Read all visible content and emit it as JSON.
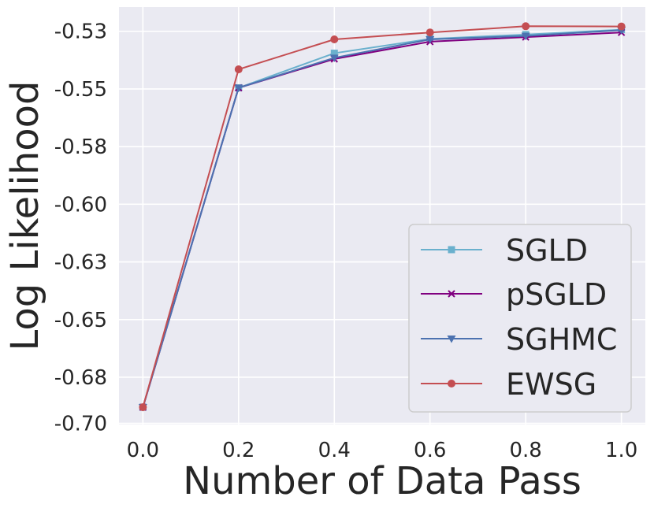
{
  "chart_data": {
    "type": "line",
    "title": "",
    "xlabel": "Number of Data Pass",
    "ylabel": "Log Likelihood",
    "xlim": [
      -0.05,
      1.05
    ],
    "ylim": [
      -0.7005,
      -0.5195
    ],
    "x": [
      0.0,
      0.2,
      0.4,
      0.6,
      0.8,
      1.0
    ],
    "xticks": [
      0.0,
      0.2,
      0.4,
      0.6,
      0.8,
      1.0
    ],
    "xtick_labels": [
      "0.0",
      "0.2",
      "0.4",
      "0.6",
      "0.8",
      "1.0"
    ],
    "yticks": [
      -0.53,
      -0.555,
      -0.58,
      -0.605,
      -0.63,
      -0.655,
      -0.68,
      -0.7
    ],
    "ytick_labels": [
      "-0.53",
      "-0.55",
      "-0.58",
      "-0.60",
      "-0.63",
      "-0.65",
      "-0.68",
      "-0.70"
    ],
    "grid": true,
    "legend_position": "lower-right",
    "series": [
      {
        "name": "SGLD",
        "color": "#6ab0cd",
        "marker": "square",
        "values": [
          -0.693,
          -0.5545,
          -0.5395,
          -0.5333,
          -0.5314,
          -0.5293
        ]
      },
      {
        "name": "pSGLD",
        "color": "#800080",
        "marker": "x",
        "values": [
          -0.693,
          -0.5545,
          -0.542,
          -0.5345,
          -0.5325,
          -0.5305
        ]
      },
      {
        "name": "SGHMC",
        "color": "#4c72b0",
        "marker": "triangle-down",
        "values": [
          -0.693,
          -0.5545,
          -0.5415,
          -0.5335,
          -0.532,
          -0.5295
        ]
      },
      {
        "name": "EWSG",
        "color": "#c44e52",
        "marker": "circle",
        "values": [
          -0.693,
          -0.5465,
          -0.5335,
          -0.5305,
          -0.5278,
          -0.5279
        ]
      }
    ]
  }
}
